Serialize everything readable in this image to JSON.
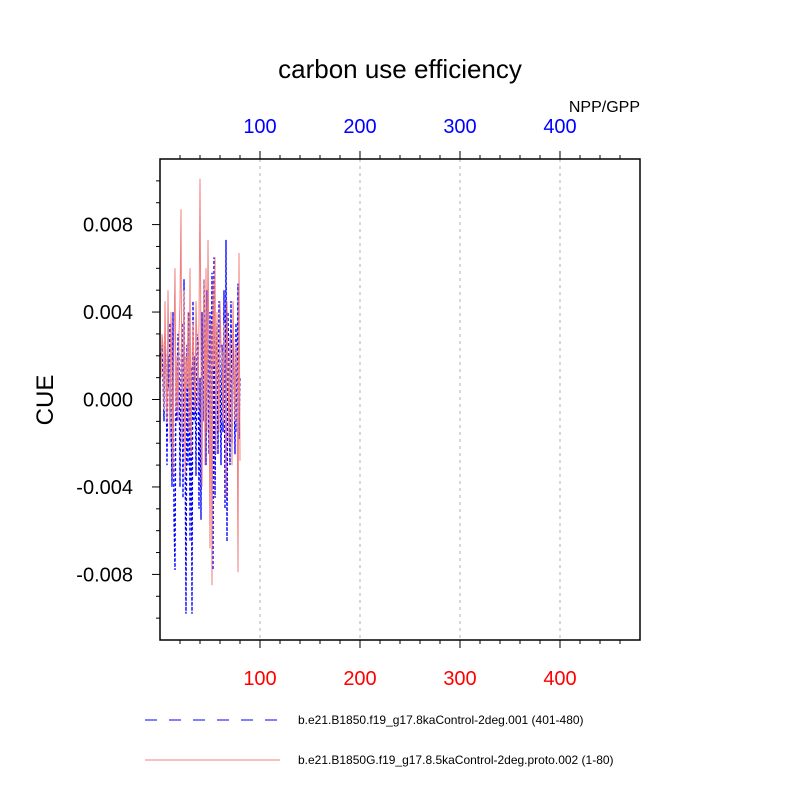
{
  "chart_data": {
    "type": "line",
    "title": "carbon use efficiency",
    "ylabel": "CUE",
    "top_axis_label": "NPP/GPP",
    "xlim": [
      0,
      480
    ],
    "ylim": [
      -0.011,
      0.011
    ],
    "grid": "vertical dashed at major x ticks",
    "x_ticks": [
      100,
      200,
      300,
      400
    ],
    "x_tick_labels": [
      "100",
      "200",
      "300",
      "400"
    ],
    "y_ticks": [
      -0.008,
      -0.004,
      0.0,
      0.004,
      0.008
    ],
    "y_tick_labels": [
      "-0.008",
      "-0.004",
      "0.000",
      "0.004",
      "0.008"
    ],
    "colors": {
      "top_tick_labels": "#0000ff",
      "bottom_tick_labels": "#ff0000"
    },
    "legend_position": "bottom",
    "series": [
      {
        "name": "b.e21.B1850.f19_g17.8kaControl-2deg.001 (401-480)",
        "color": "#0000ff",
        "dash": "dashed",
        "x": [
          1,
          2,
          3,
          4,
          5,
          6,
          7,
          8,
          9,
          10,
          11,
          12,
          13,
          14,
          15,
          16,
          17,
          18,
          19,
          20,
          21,
          22,
          23,
          24,
          25,
          26,
          27,
          28,
          29,
          30,
          31,
          32,
          33,
          34,
          35,
          36,
          37,
          38,
          39,
          40,
          41,
          42,
          43,
          44,
          45,
          46,
          47,
          48,
          49,
          50,
          51,
          52,
          53,
          54,
          55,
          56,
          57,
          58,
          59,
          60,
          61,
          62,
          63,
          64,
          65,
          66,
          67,
          68,
          69,
          70,
          71,
          72,
          73,
          74,
          75,
          76,
          77,
          78,
          79,
          80
        ],
        "values": [
          0.002,
          0.0025,
          0.001,
          -0.001,
          0.003,
          0.0015,
          -0.003,
          0.002,
          0.0005,
          0.0035,
          -0.001,
          -0.004,
          0.004,
          -0.0055,
          -0.0078,
          0.0015,
          -0.001,
          0.003,
          0.002,
          -0.004,
          0.001,
          0.0035,
          -0.0045,
          0.0055,
          -0.0015,
          -0.0098,
          0.0025,
          -0.003,
          0.004,
          -0.0065,
          0.0015,
          -0.0098,
          0.0045,
          -0.001,
          0.002,
          -0.0035,
          0.003,
          0.0025,
          -0.005,
          0.001,
          -0.0055,
          0.004,
          -0.001,
          0.0055,
          0.0025,
          -0.003,
          0.005,
          0.0015,
          -0.0025,
          0.004,
          -0.0015,
          0.0058,
          -0.0078,
          0.0065,
          -0.0045,
          0.001,
          0.0035,
          -0.0025,
          0.0045,
          0.0015,
          -0.003,
          0.0025,
          -0.0015,
          0.005,
          -0.005,
          0.0073,
          -0.0065,
          0.004,
          0.001,
          -0.003,
          0.0045,
          -0.002,
          0.003,
          0.0015,
          -0.0025,
          0.0035,
          -0.0015,
          0.0053,
          -0.0018,
          0.001
        ]
      },
      {
        "name": "b.e21.B1850G.f19_g17.8.5kaControl-2deg.proto.002 (1-80)",
        "color": "#f08080",
        "dash": "solid",
        "x": [
          1,
          2,
          3,
          4,
          5,
          6,
          7,
          8,
          9,
          10,
          11,
          12,
          13,
          14,
          15,
          16,
          17,
          18,
          19,
          20,
          21,
          22,
          23,
          24,
          25,
          26,
          27,
          28,
          29,
          30,
          31,
          32,
          33,
          34,
          35,
          36,
          37,
          38,
          39,
          40,
          41,
          42,
          43,
          44,
          45,
          46,
          47,
          48,
          49,
          50,
          51,
          52,
          53,
          54,
          55,
          56,
          57,
          58,
          59,
          60,
          61,
          62,
          63,
          64,
          65,
          66,
          67,
          68,
          69,
          70,
          71,
          72,
          73,
          74,
          75,
          76,
          77,
          78,
          79,
          80
        ],
        "values": [
          0.001,
          0.003,
          0.0025,
          -0.0005,
          0.0045,
          0.001,
          -0.001,
          0.005,
          0.0015,
          -0.002,
          0.004,
          0.001,
          -0.0035,
          0.0028,
          0.006,
          -0.0005,
          0.002,
          -0.001,
          0.003,
          0.0045,
          0.0087,
          -0.002,
          0.0015,
          0.005,
          -0.0035,
          0.002,
          0.0005,
          0.004,
          -0.0015,
          0.006,
          -0.0025,
          0.0015,
          0.0035,
          0.001,
          -0.0005,
          0.0045,
          0.0025,
          -0.0005,
          0.0035,
          0.0101,
          0.002,
          -0.004,
          0.0025,
          0.0055,
          -0.003,
          0.006,
          -0.0015,
          0.0073,
          0.0015,
          -0.0068,
          0.0035,
          -0.0085,
          0.0055,
          0.0015,
          0.0065,
          -0.0025,
          0.004,
          0.001,
          -0.0015,
          0.0045,
          0.0025,
          0.002,
          -0.001,
          0.0035,
          0.0015,
          -0.0045,
          0.0045,
          0.0015,
          -0.002,
          0.003,
          0.001,
          -0.003,
          0.0045,
          0.002,
          -0.001,
          0.0025,
          0.0015,
          -0.0079,
          0.0067,
          -0.0028
        ]
      }
    ]
  }
}
